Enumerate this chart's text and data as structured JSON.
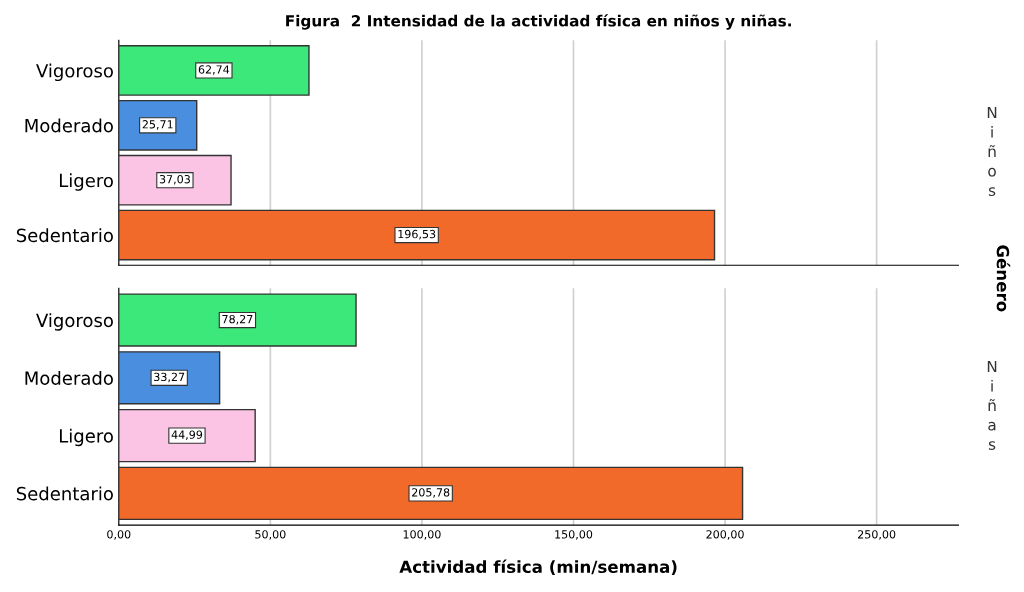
{
  "chart_data": [
    {
      "type": "bar",
      "orientation": "horizontal",
      "title": "Figura  2 Intensidad de la actividad física en niños y niñas.",
      "categories": [
        "Vigoroso",
        "Moderado",
        "Ligero",
        "Sedentario"
      ],
      "values": [
        62.74,
        25.71,
        37.03,
        196.53
      ],
      "value_labels": [
        "62,74",
        "25,71",
        "37,03",
        "196,53"
      ],
      "colors": [
        "#3de87a",
        "#4a8fdf",
        "#fbc4e4",
        "#f26a2a"
      ],
      "xlim": [
        0,
        277
      ],
      "xticks": [
        {
          "value": 0,
          "label": null
        },
        {
          "value": 50,
          "label": null
        },
        {
          "value": 100,
          "label": null
        },
        {
          "value": 150,
          "label": null
        },
        {
          "value": 200,
          "label": null
        },
        {
          "value": 250,
          "label": null
        }
      ],
      "grid": "x",
      "tick_labels": "y",
      "annotations": [
        "Niños",
        "Género"
      ]
    },
    {
      "type": "bar",
      "orientation": "horizontal",
      "xlabel": "Actividad física (min/semana)",
      "categories": [
        "Vigoroso",
        "Moderado",
        "Ligero",
        "Sedentario"
      ],
      "values": [
        78.27,
        33.27,
        44.99,
        205.78
      ],
      "value_labels": [
        "78,27",
        "33,27",
        "44,99",
        "205,78"
      ],
      "colors": [
        "#3de87a",
        "#4a8fdf",
        "#fbc4e4",
        "#f26a2a"
      ],
      "xlim": [
        0,
        277
      ],
      "xticks": [
        {
          "value": 0,
          "label": "0,00"
        },
        {
          "value": 50,
          "label": "50,00"
        },
        {
          "value": 100,
          "label": "100,00"
        },
        {
          "value": 150,
          "label": "150,00"
        },
        {
          "value": 200,
          "label": "200,00"
        },
        {
          "value": 250,
          "label": "250,00"
        }
      ],
      "grid": "x",
      "annotations": [
        "Niñas"
      ]
    }
  ]
}
